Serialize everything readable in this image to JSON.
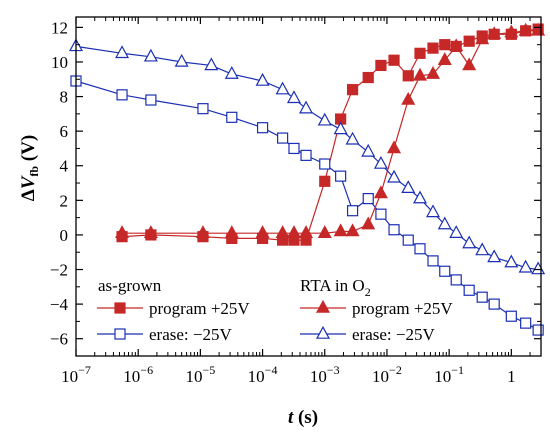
{
  "chart_data": {
    "type": "scatter",
    "x_scale": "log",
    "xlim": [
      1e-07,
      3
    ],
    "ylim": [
      -7,
      12.6
    ],
    "xlabel": "t (s)",
    "ylabel": "ΔVfb (V)",
    "xticks": [
      {
        "value": 1e-07,
        "base": "10",
        "exp": "−7"
      },
      {
        "value": 1e-06,
        "base": "10",
        "exp": "−6"
      },
      {
        "value": 1e-05,
        "base": "10",
        "exp": "−5"
      },
      {
        "value": 0.0001,
        "base": "10",
        "exp": "−4"
      },
      {
        "value": 0.001,
        "base": "10",
        "exp": "−3"
      },
      {
        "value": 0.01,
        "base": "10",
        "exp": "−2"
      },
      {
        "value": 0.1,
        "base": "10",
        "exp": "−1"
      },
      {
        "value": 1,
        "base": "1",
        "exp": ""
      }
    ],
    "yticks": [
      -6,
      -4,
      -2,
      0,
      2,
      4,
      6,
      8,
      10,
      12
    ],
    "ytick_labels": [
      "−6",
      "−4",
      "−2",
      "0",
      "2",
      "4",
      "6",
      "8",
      "10",
      "12"
    ],
    "legend": {
      "group1_title": "as-grown",
      "group2_title": "RTA in O",
      "group2_title_sub": "2",
      "placement": "bottom-left"
    },
    "series": [
      {
        "name": "program +25V",
        "group": "as-grown",
        "marker": "square-filled",
        "line": "solid",
        "x": [
          5.5e-07,
          1.6e-06,
          1.1e-05,
          3.2e-05,
          0.0001,
          0.00021,
          0.00032,
          0.0005,
          0.001,
          0.0018,
          0.0028,
          0.005,
          0.008,
          0.013,
          0.022,
          0.034,
          0.055,
          0.085,
          0.13,
          0.21,
          0.34,
          0.53,
          1,
          1.7,
          2.7
        ],
        "y": [
          -0.1,
          0.0,
          -0.1,
          -0.2,
          -0.2,
          -0.3,
          -0.3,
          -0.3,
          3.1,
          6.7,
          8.4,
          9.1,
          9.8,
          10.1,
          9.2,
          10.5,
          10.8,
          11.0,
          10.9,
          11.2,
          11.5,
          11.6,
          11.6,
          11.8,
          11.9
        ]
      },
      {
        "name": "erase: −25V",
        "group": "as-grown",
        "marker": "square-open",
        "line": "solid",
        "x": [
          1e-07,
          5.5e-07,
          1.6e-06,
          1.1e-05,
          3.2e-05,
          0.0001,
          0.00021,
          0.00032,
          0.0005,
          0.001,
          0.0018,
          0.0028,
          0.005,
          0.008,
          0.013,
          0.022,
          0.034,
          0.055,
          0.085,
          0.13,
          0.21,
          0.34,
          0.53,
          1,
          1.7,
          2.7
        ],
        "y": [
          8.9,
          8.1,
          7.8,
          7.3,
          6.8,
          6.2,
          5.6,
          5.0,
          4.6,
          4.1,
          3.4,
          1.4,
          2.1,
          1.2,
          0.3,
          -0.3,
          -0.8,
          -1.5,
          -2.1,
          -2.6,
          -3.2,
          -3.6,
          -4.0,
          -4.7,
          -5.1,
          -5.5
        ]
      },
      {
        "name": "program +25V",
        "group": "RTA in O2",
        "marker": "triangle-filled",
        "line": "solid",
        "x": [
          5.5e-07,
          1.6e-06,
          1.1e-05,
          3.2e-05,
          0.0001,
          0.00021,
          0.00032,
          0.0005,
          0.001,
          0.0018,
          0.0028,
          0.005,
          0.008,
          0.013,
          0.022,
          0.034,
          0.055,
          0.085,
          0.13,
          0.21,
          0.34,
          0.53,
          1,
          1.7,
          2.7
        ],
        "y": [
          0.1,
          0.1,
          0.1,
          0.1,
          0.1,
          0.1,
          0.1,
          0.1,
          0.1,
          0.2,
          0.2,
          0.6,
          2.4,
          5.0,
          7.8,
          9.2,
          9.3,
          10.1,
          10.9,
          9.8,
          11.3,
          11.6,
          11.7,
          11.8,
          11.8
        ]
      },
      {
        "name": "erase: −25V",
        "group": "RTA in O2",
        "marker": "triangle-open",
        "line": "solid",
        "x": [
          1e-07,
          5.5e-07,
          1.6e-06,
          5e-06,
          1.5e-05,
          3.2e-05,
          0.0001,
          0.00021,
          0.00032,
          0.0005,
          0.001,
          0.0018,
          0.0028,
          0.005,
          0.008,
          0.013,
          0.022,
          0.034,
          0.055,
          0.085,
          0.13,
          0.21,
          0.34,
          0.53,
          1,
          1.7,
          2.7
        ],
        "y": [
          10.9,
          10.5,
          10.3,
          10.0,
          9.8,
          9.3,
          8.9,
          8.4,
          7.9,
          7.3,
          6.6,
          6.1,
          5.5,
          4.8,
          4.1,
          3.3,
          2.7,
          2.1,
          1.3,
          0.6,
          0.1,
          -0.5,
          -0.9,
          -1.3,
          -1.6,
          -1.9,
          -2.0
        ]
      }
    ],
    "colors": {
      "red_series": "#c62828",
      "blue_series": "#1a2fb5",
      "axis": "#000000"
    }
  }
}
